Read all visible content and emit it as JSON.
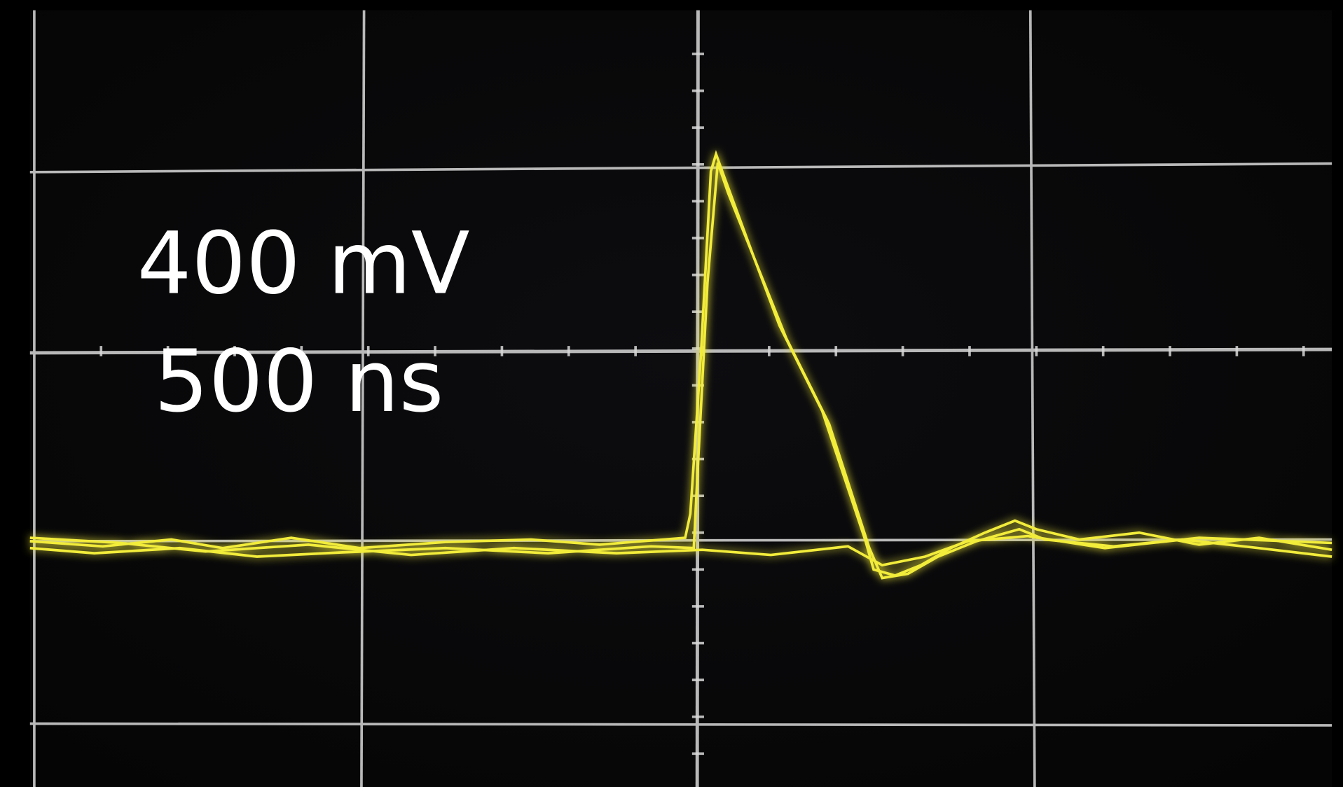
{
  "scope": {
    "vertical_scale": "400 mV",
    "time_scale": "500 ns"
  }
}
